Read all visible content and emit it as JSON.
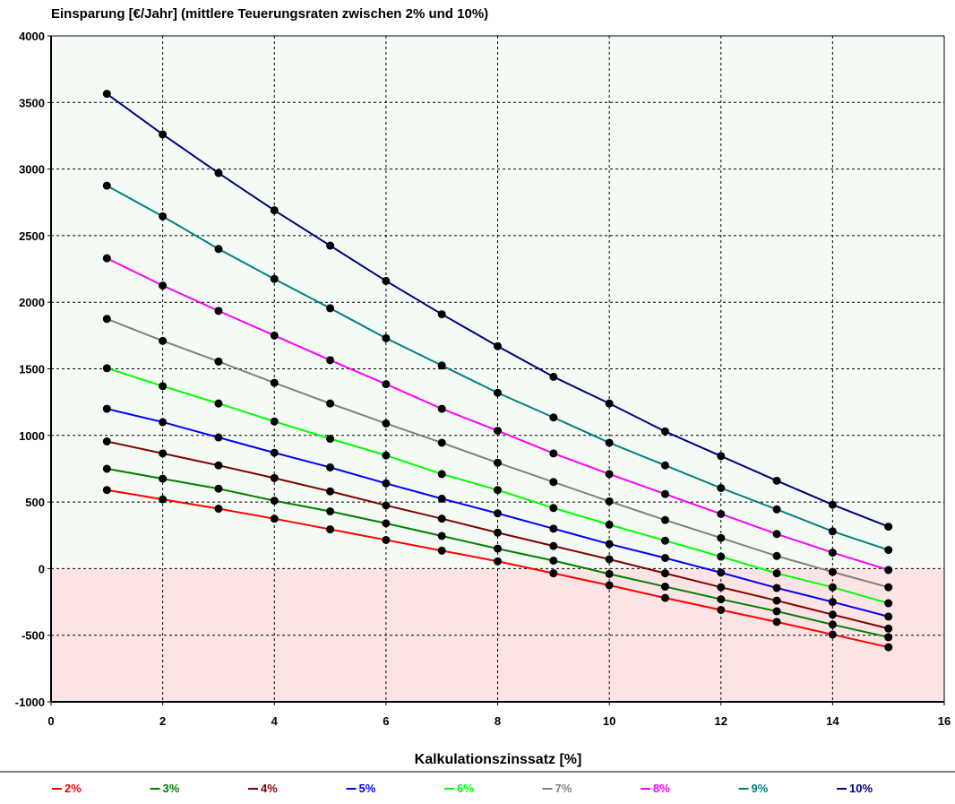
{
  "chart_data": {
    "type": "line",
    "title": "Einsparung [€/Jahr] (mittlere Teuerungsraten zwischen 2% und 10%)",
    "xlabel": "Kalkulationszinssatz [%]",
    "ylabel": "",
    "xlim": [
      0,
      16
    ],
    "ylim": [
      -1000,
      4000
    ],
    "x_ticks": [
      "0",
      "2",
      "4",
      "6",
      "8",
      "10",
      "12",
      "14",
      "16"
    ],
    "y_ticks": [
      "4000",
      "3500",
      "3000",
      "2500",
      "2000",
      "1500",
      "1000",
      "500",
      "0",
      "-500",
      "-1000"
    ],
    "grid": true,
    "legend_position": "bottom",
    "background_colors": {
      "positive": "#f4fbf4",
      "negative": "#fce4e4"
    },
    "x": [
      1,
      2,
      3,
      4,
      5,
      6,
      7,
      8,
      9,
      10,
      11,
      12,
      13,
      14,
      15
    ],
    "series": [
      {
        "name": "2%",
        "color": "#ff0000",
        "values": [
          590,
          520,
          450,
          375,
          295,
          215,
          135,
          55,
          -35,
          -125,
          -220,
          -310,
          -400,
          -495,
          -590
        ]
      },
      {
        "name": "3%",
        "color": "#008000",
        "values": [
          750,
          675,
          600,
          510,
          430,
          340,
          245,
          150,
          60,
          -40,
          -135,
          -230,
          -320,
          -420,
          -515
        ]
      },
      {
        "name": "4%",
        "color": "#800000",
        "values": [
          955,
          865,
          775,
          680,
          580,
          475,
          375,
          270,
          170,
          70,
          -35,
          -140,
          -240,
          -345,
          -450
        ]
      },
      {
        "name": "5%",
        "color": "#0000ff",
        "values": [
          1200,
          1100,
          985,
          870,
          760,
          640,
          525,
          415,
          300,
          185,
          80,
          -30,
          -145,
          -250,
          -360
        ]
      },
      {
        "name": "6%",
        "color": "#00ff00",
        "values": [
          1505,
          1370,
          1240,
          1105,
          975,
          850,
          710,
          590,
          455,
          330,
          210,
          90,
          -35,
          -140,
          -260
        ]
      },
      {
        "name": "7%",
        "color": "#808080",
        "values": [
          1875,
          1710,
          1555,
          1395,
          1240,
          1090,
          945,
          795,
          650,
          505,
          365,
          230,
          95,
          -25,
          -140
        ]
      },
      {
        "name": "8%",
        "color": "#ff00ff",
        "values": [
          2330,
          2125,
          1935,
          1750,
          1565,
          1385,
          1200,
          1035,
          865,
          710,
          560,
          410,
          260,
          120,
          -10
        ]
      },
      {
        "name": "9%",
        "color": "#008080",
        "values": [
          2875,
          2645,
          2400,
          2175,
          1955,
          1730,
          1525,
          1320,
          1135,
          945,
          775,
          605,
          445,
          280,
          140
        ]
      },
      {
        "name": "10%",
        "color": "#000080",
        "values": [
          3565,
          3260,
          2970,
          2690,
          2425,
          2160,
          1910,
          1670,
          1440,
          1240,
          1030,
          845,
          660,
          480,
          315
        ]
      }
    ]
  }
}
